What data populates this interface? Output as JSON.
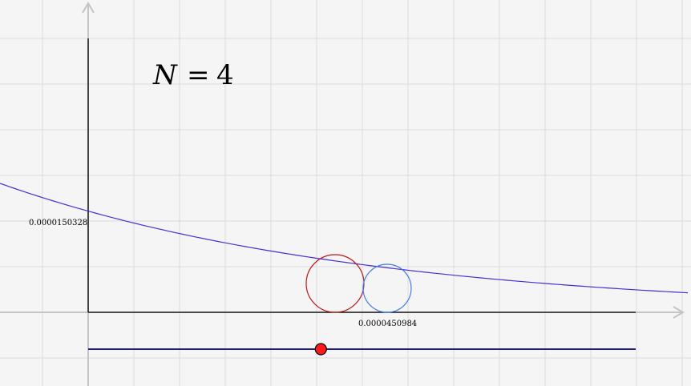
{
  "equation": {
    "variable": "N",
    "operator": "=",
    "value": "4"
  },
  "labels": {
    "y_marker": "0.0000150328",
    "x_marker": "0.0000450984"
  },
  "colors": {
    "background": "#f5f5f5",
    "grid": "#dcdcdc",
    "axis": "#c4c4c4",
    "frame": "#000000",
    "curve": "#4b2bd6",
    "circle_red": "#b81a1a",
    "circle_blue": "#3f7ee0",
    "slider_track": "#1f1f7a",
    "slider_knob": "#ff1a1a"
  },
  "slider": {
    "value_fraction": 0.425
  },
  "icons": {
    "axis_arrow": "arrowhead-icon"
  }
}
